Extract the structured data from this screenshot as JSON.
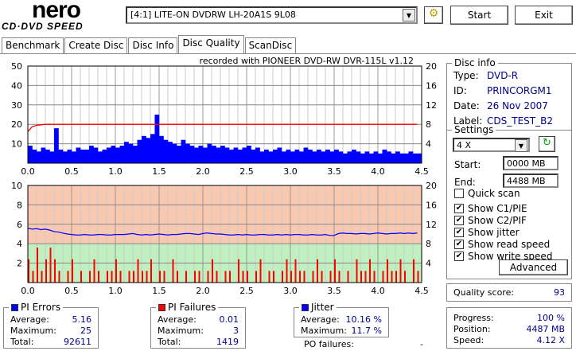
{
  "app": {
    "logo_top": "nero",
    "logo_bottom": "CD·DVD SPEED"
  },
  "toolbar": {
    "drive": "[4:1]  LITE-ON DVDRW LH-20A1S 9L08",
    "start": "Start",
    "exit": "Exit"
  },
  "tabs": [
    "Benchmark",
    "Create Disc",
    "Disc Info",
    "Disc Quality",
    "ScanDisc"
  ],
  "chart_title": "recorded with PIONEER DVD-RW  DVR-115L v1.12",
  "disc_info": {
    "title": "Disc info",
    "rows": [
      {
        "label": "Type:",
        "value": "DVD-R"
      },
      {
        "label": "ID:",
        "value": "PRINCORGM1"
      },
      {
        "label": "Date:",
        "value": "26 Nov 2007"
      },
      {
        "label": "Label:",
        "value": "CDS_TEST_B2"
      }
    ]
  },
  "settings": {
    "title": "Settings",
    "speed": "4 X",
    "start_label": "Start:",
    "start": "0000 MB",
    "end_label": "End:",
    "end": "4488 MB",
    "checks": [
      {
        "label": "Quick scan",
        "checked": false
      },
      {
        "label": "Show C1/PIE",
        "checked": true
      },
      {
        "label": "Show C2/PIF",
        "checked": true
      },
      {
        "label": "Show jitter",
        "checked": true
      },
      {
        "label": "Show read speed",
        "checked": true
      },
      {
        "label": "Show write speed",
        "checked": true
      }
    ],
    "advanced": "Advanced"
  },
  "quality": {
    "label": "Quality score:",
    "value": "93"
  },
  "pi_errors": {
    "title": "PI Errors",
    "average_label": "Average:",
    "average": "5.16",
    "maximum_label": "Maximum:",
    "maximum": "25",
    "total_label": "Total:",
    "total": "92611"
  },
  "pi_failures": {
    "title": "PI Failures",
    "average_label": "Average:",
    "average": "0.01",
    "maximum_label": "Maximum:",
    "maximum": "3",
    "total_label": "Total:",
    "total": "1419"
  },
  "jitter": {
    "title": "Jitter",
    "average_label": "Average:",
    "average": "10.16 %",
    "maximum_label": "Maximum:",
    "maximum": "11.7 %",
    "po_label": "PO failures:",
    "po": "-"
  },
  "progress": {
    "progress_label": "Progress:",
    "progress": "100 %",
    "position_label": "Position:",
    "position": "4487 MB",
    "speed_label": "Speed:",
    "speed": "4.12 X"
  },
  "colors": {
    "pie": "#0000ff",
    "pif": "#ff0000",
    "read": "#ff0000",
    "jitter": "#0000ff",
    "upper_bg": "#f8c8b0",
    "lower_bg": "#c0f0c0"
  },
  "chart_data": [
    {
      "type": "bar",
      "name": "PI Errors / Read speed",
      "xlim": [
        0,
        4.5
      ],
      "ylim_left": [
        0,
        50
      ],
      "ylim_right": [
        0,
        20
      ],
      "xticks": [
        "0.0",
        "0.5",
        "1.0",
        "1.5",
        "2.0",
        "2.5",
        "3.0",
        "3.5",
        "4.0",
        "4.5"
      ],
      "yticks_left": [
        "10",
        "20",
        "30",
        "40",
        "50"
      ],
      "yticks_right": [
        "4",
        "8",
        "12",
        "16",
        "20"
      ],
      "x_step": 0.05,
      "pie": [
        9,
        7,
        6,
        8,
        7,
        6,
        18,
        7,
        6,
        7,
        6,
        8,
        7,
        7,
        9,
        8,
        6,
        7,
        8,
        9,
        8,
        9,
        11,
        10,
        9,
        12,
        14,
        13,
        15,
        25,
        14,
        12,
        11,
        10,
        9,
        12,
        10,
        9,
        8,
        9,
        8,
        10,
        9,
        8,
        9,
        8,
        7,
        8,
        7,
        8,
        9,
        7,
        8,
        6,
        7,
        6,
        7,
        8,
        6,
        7,
        6,
        7,
        6,
        8,
        7,
        6,
        7,
        6,
        7,
        6,
        7,
        6,
        5,
        6,
        7,
        6,
        5,
        6,
        5,
        6,
        5,
        7,
        6,
        5,
        6,
        5,
        5,
        6,
        5,
        5
      ],
      "read_speed": [
        6.5,
        7.5,
        7.8,
        7.9,
        8,
        8,
        8,
        8,
        8,
        8,
        8,
        8,
        8,
        8,
        8,
        8,
        8,
        8,
        8,
        8,
        8,
        8,
        8,
        8,
        8,
        8,
        8,
        8,
        8,
        8,
        8,
        8,
        8,
        8,
        8,
        8,
        8,
        8,
        8,
        8,
        8,
        8,
        8,
        8,
        8,
        8,
        8,
        8,
        8,
        8,
        8,
        8,
        8,
        8,
        8,
        8,
        8,
        8,
        8,
        8,
        8,
        8,
        8,
        8,
        8,
        8,
        8,
        8,
        8,
        8,
        8,
        8,
        8,
        8,
        8,
        8,
        8,
        8,
        8,
        8,
        8,
        8,
        8,
        8,
        8,
        8,
        8,
        8,
        8,
        8
      ]
    },
    {
      "type": "bar",
      "name": "PI Failures / Jitter",
      "xlim": [
        0,
        4.5
      ],
      "ylim_left": [
        0,
        10
      ],
      "ylim_right": [
        0,
        20
      ],
      "xticks": [
        "0.0",
        "0.5",
        "1.0",
        "1.5",
        "2.0",
        "2.5",
        "3.0",
        "3.5",
        "4.0",
        "4.5"
      ],
      "yticks_left": [
        "2",
        "4",
        "6",
        "8",
        "10"
      ],
      "yticks_right": [
        "4",
        "8",
        "12",
        "16",
        "20"
      ],
      "x_step": 0.05,
      "pif": [
        2,
        1,
        3,
        1,
        2,
        3,
        2,
        1,
        0,
        1,
        2,
        0,
        1,
        0,
        1,
        2,
        1,
        0,
        1,
        1,
        2,
        1,
        0,
        1,
        1,
        2,
        1,
        1,
        2,
        0,
        1,
        1,
        0,
        2,
        1,
        0,
        1,
        0,
        1,
        1,
        0,
        1,
        2,
        1,
        0,
        1,
        1,
        0,
        2,
        1,
        1,
        0,
        1,
        2,
        0,
        1,
        1,
        0,
        1,
        2,
        1,
        2,
        1,
        1,
        0,
        1,
        2,
        1,
        0,
        1,
        2,
        1,
        0,
        1,
        0,
        2,
        1,
        1,
        2,
        1,
        0,
        1,
        2,
        1,
        1,
        2,
        1,
        0,
        2,
        1
      ],
      "jitter": [
        11.2,
        11.0,
        11.1,
        10.9,
        11.0,
        10.8,
        10.5,
        10.4,
        10.2,
        10.0,
        9.9,
        9.8,
        9.8,
        9.9,
        9.8,
        9.8,
        9.9,
        9.9,
        9.8,
        9.8,
        9.9,
        9.9,
        9.9,
        10.0,
        10.1,
        9.9,
        9.8,
        9.9,
        9.8,
        9.9,
        10.0,
        9.9,
        9.8,
        9.9,
        9.9,
        10.0,
        10.1,
        10.1,
        10.0,
        9.9,
        10.1,
        10.2,
        10.1,
        10.0,
        10.0,
        9.9,
        9.8,
        9.8,
        9.9,
        9.8,
        9.9,
        9.8,
        9.8,
        9.9,
        9.9,
        9.8,
        9.8,
        9.9,
        9.8,
        9.9,
        9.8,
        9.9,
        9.9,
        9.8,
        9.8,
        9.9,
        9.8,
        9.8,
        9.9,
        9.7,
        9.7,
        10.1,
        10.2,
        10.1,
        10.1,
        10.0,
        10.1,
        10.1,
        10.0,
        10.1,
        10.2,
        10.1,
        10.0,
        10.1,
        10.1,
        10.2,
        10.1,
        10.2,
        10.1,
        10.2
      ]
    }
  ]
}
